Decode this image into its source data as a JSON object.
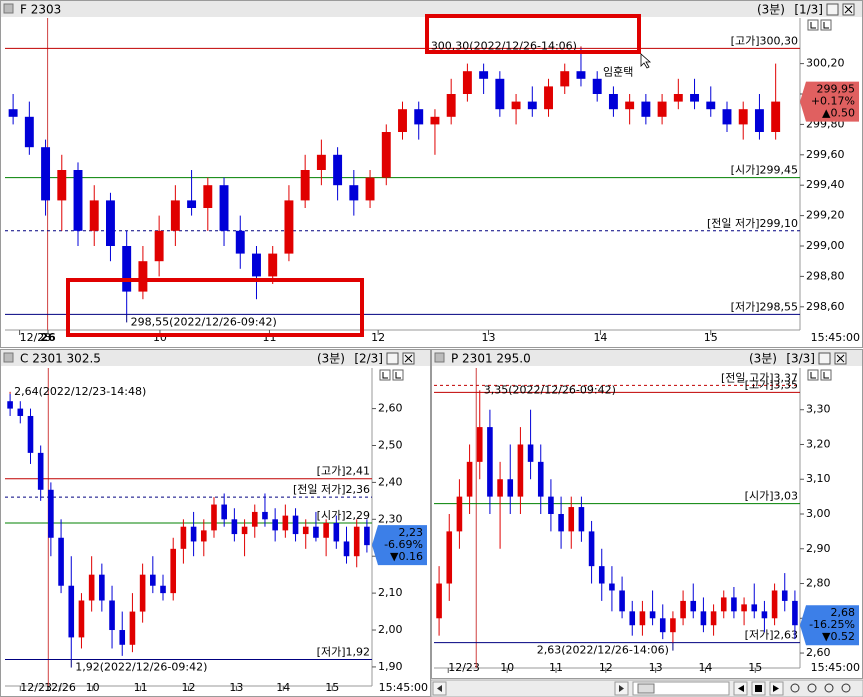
{
  "chart_data": [
    {
      "type": "candlestick",
      "title": "F 2303",
      "period": "(3분)",
      "page": "[1/3]",
      "user_label": "임훈택",
      "up_color": "#e00000",
      "down_color": "#0000d8",
      "badge_color": "#e06060",
      "badge": [
        "299,95",
        "+0.17%",
        "▲0.50"
      ],
      "xlim": [
        0,
        49
      ],
      "xticks": [
        {
          "value": 0.9,
          "label": "12/23"
        },
        {
          "value": 2.65,
          "label": "26"
        },
        {
          "value": 9.55,
          "label": "10"
        },
        {
          "value": 16.3,
          "label": "11"
        },
        {
          "value": 23.0,
          "label": "12"
        },
        {
          "value": 29.8,
          "label": "13"
        },
        {
          "value": 36.7,
          "label": "14"
        },
        {
          "value": 43.5,
          "label": "15"
        }
      ],
      "x_end_label": "15:45:00",
      "ylim": [
        298.5,
        300.5
      ],
      "yticks": [
        {
          "value": 300.2,
          "label": "300,20"
        },
        {
          "value": 300.0,
          "label": "300,00"
        },
        {
          "value": 299.8,
          "label": "299,80"
        },
        {
          "value": 299.6,
          "label": "299,60"
        },
        {
          "value": 299.4,
          "label": "299,40"
        },
        {
          "value": 299.2,
          "label": "299,20"
        },
        {
          "value": 299.0,
          "label": "299,00"
        },
        {
          "value": 298.8,
          "label": "298,80"
        },
        {
          "value": 298.6,
          "label": "298,60"
        }
      ],
      "reference_lines": [
        {
          "label": "[고가]",
          "value": 300.3,
          "value_label": "300,30",
          "color": "#c00000",
          "style": "solid"
        },
        {
          "label": "[시가]",
          "value": 299.45,
          "value_label": "299,45",
          "color": "#008000",
          "style": "solid"
        },
        {
          "label": "[전일 저가]",
          "value": 299.1,
          "value_label": "299,10",
          "color": "#000080",
          "style": "dashed"
        },
        {
          "label": "[저가]",
          "value": 298.55,
          "value_label": "298,55",
          "color": "#000080",
          "style": "solid"
        }
      ],
      "annotations": [
        {
          "text": "300,30(2022/12/26-14:06)",
          "value": 300.3
        },
        {
          "text": "298,55(2022/12/26-09:42)",
          "value": 298.55
        }
      ],
      "open": [
        299.9,
        299.85,
        299.65,
        299.3,
        299.5,
        299.1,
        299.3,
        299.0,
        298.7,
        298.9,
        299.1,
        299.3,
        299.25,
        299.4,
        299.1,
        298.95,
        298.8,
        298.95,
        299.3,
        299.5,
        299.6,
        299.4,
        299.3,
        299.45,
        299.75,
        299.9,
        299.8,
        299.85,
        300.0,
        300.15,
        300.1,
        299.9,
        299.95,
        299.9,
        300.05,
        300.15,
        300.1,
        300.0,
        299.9,
        299.95,
        299.85,
        299.95,
        300.0,
        299.95,
        299.9,
        299.8,
        299.9,
        299.75
      ],
      "high": [
        300.0,
        299.95,
        299.7,
        299.6,
        299.55,
        299.4,
        299.35,
        299.1,
        299.0,
        299.2,
        299.4,
        299.5,
        299.45,
        299.45,
        299.2,
        299.0,
        299.0,
        299.4,
        299.6,
        299.7,
        299.65,
        299.5,
        299.5,
        299.8,
        299.95,
        299.95,
        299.9,
        300.1,
        300.2,
        300.2,
        300.15,
        300.0,
        300.05,
        300.1,
        300.2,
        300.3,
        300.15,
        300.05,
        300.0,
        300.0,
        300.0,
        300.1,
        300.1,
        300.05,
        299.95,
        299.95,
        300.0,
        300.2
      ],
      "low": [
        299.8,
        299.6,
        299.2,
        299.1,
        299.0,
        299.0,
        298.9,
        298.55,
        298.65,
        298.8,
        299.0,
        299.2,
        299.1,
        299.0,
        298.85,
        298.65,
        298.75,
        298.9,
        299.25,
        299.4,
        299.3,
        299.2,
        299.25,
        299.4,
        299.7,
        299.7,
        299.6,
        299.8,
        299.95,
        300.0,
        299.85,
        299.8,
        299.85,
        299.85,
        300.0,
        300.05,
        299.95,
        299.85,
        299.8,
        299.8,
        299.8,
        299.9,
        299.9,
        299.85,
        299.75,
        299.7,
        299.7,
        299.7
      ],
      "close": [
        299.85,
        299.65,
        299.3,
        299.5,
        299.1,
        299.3,
        299.0,
        298.7,
        298.9,
        299.1,
        299.3,
        299.25,
        299.4,
        299.1,
        298.95,
        298.8,
        298.95,
        299.3,
        299.5,
        299.6,
        299.4,
        299.3,
        299.45,
        299.75,
        299.9,
        299.8,
        299.85,
        300.0,
        300.15,
        300.1,
        299.9,
        299.95,
        299.9,
        300.05,
        300.15,
        300.1,
        300.0,
        299.9,
        299.95,
        299.85,
        299.95,
        300.0,
        299.95,
        299.9,
        299.8,
        299.9,
        299.75,
        299.95
      ]
    },
    {
      "type": "candlestick",
      "title": "C 2301 302.5",
      "period": "(3분)",
      "page": "[2/3]",
      "up_color": "#e00000",
      "down_color": "#0000d8",
      "badge_color": "#3c7fe8",
      "badge": [
        "2,23",
        "-6.69%",
        "▼0.16"
      ],
      "xlim": [
        0,
        36
      ],
      "xticks": [
        {
          "value": 1.5,
          "label": "12/23"
        },
        {
          "value": 5.4,
          "label": "12/26"
        },
        {
          "value": 8.6,
          "label": "10"
        },
        {
          "value": 13.3,
          "label": "11"
        },
        {
          "value": 18.0,
          "label": "12"
        },
        {
          "value": 22.7,
          "label": "13"
        },
        {
          "value": 27.3,
          "label": "14"
        },
        {
          "value": 32.1,
          "label": "15"
        }
      ],
      "x_end_label": "15:45:00",
      "ylim": [
        1.87,
        2.71
      ],
      "yticks": [
        {
          "value": 2.6,
          "label": "2,60"
        },
        {
          "value": 2.5,
          "label": "2,50"
        },
        {
          "value": 2.4,
          "label": "2,40"
        },
        {
          "value": 2.3,
          "label": "2,30"
        },
        {
          "value": 2.2,
          "label": "2,20"
        },
        {
          "value": 2.1,
          "label": "2,10"
        },
        {
          "value": 2.0,
          "label": "2,00"
        },
        {
          "value": 1.9,
          "label": "1,90"
        }
      ],
      "reference_lines": [
        {
          "label": "[고가]",
          "value": 2.41,
          "value_label": "2,41",
          "color": "#c00000",
          "style": "solid"
        },
        {
          "label": "[전일 저가]",
          "value": 2.36,
          "value_label": "2,36",
          "color": "#000080",
          "style": "dashed"
        },
        {
          "label": "[시가]",
          "value": 2.29,
          "value_label": "2,29",
          "color": "#008000",
          "style": "solid"
        },
        {
          "label": "[저가]",
          "value": 1.92,
          "value_label": "1,92",
          "color": "#000080",
          "style": "solid"
        }
      ],
      "annotations": [
        {
          "text": "2,64(2022/12/23-14:48)",
          "value": 2.64
        },
        {
          "text": "1,92(2022/12/26-09:42)",
          "value": 1.92
        }
      ],
      "open": [
        2.62,
        2.6,
        2.58,
        2.48,
        2.38,
        2.25,
        2.12,
        1.98,
        2.08,
        2.15,
        2.08,
        2.0,
        1.96,
        2.05,
        2.15,
        2.12,
        2.1,
        2.22,
        2.28,
        2.24,
        2.27,
        2.34,
        2.3,
        2.26,
        2.28,
        2.32,
        2.3,
        2.27,
        2.31,
        2.26,
        2.28,
        2.25,
        2.29,
        2.24,
        2.2,
        2.28
      ],
      "high": [
        2.64,
        2.62,
        2.6,
        2.5,
        2.4,
        2.3,
        2.2,
        2.1,
        2.2,
        2.18,
        2.12,
        2.05,
        2.1,
        2.18,
        2.2,
        2.15,
        2.25,
        2.3,
        2.32,
        2.3,
        2.36,
        2.37,
        2.33,
        2.3,
        2.34,
        2.37,
        2.33,
        2.34,
        2.33,
        2.3,
        2.32,
        2.3,
        2.31,
        2.28,
        2.3,
        2.3
      ],
      "low": [
        2.58,
        2.56,
        2.45,
        2.35,
        2.2,
        2.1,
        1.92,
        1.95,
        2.05,
        2.05,
        1.95,
        1.93,
        1.94,
        2.02,
        2.1,
        2.08,
        2.08,
        2.18,
        2.2,
        2.2,
        2.25,
        2.28,
        2.24,
        2.2,
        2.25,
        2.28,
        2.24,
        2.25,
        2.24,
        2.22,
        2.24,
        2.2,
        2.22,
        2.18,
        2.17,
        2.21
      ],
      "close": [
        2.6,
        2.58,
        2.48,
        2.38,
        2.25,
        2.12,
        1.98,
        2.08,
        2.15,
        2.08,
        2.0,
        1.96,
        2.05,
        2.15,
        2.12,
        2.1,
        2.22,
        2.28,
        2.24,
        2.27,
        2.34,
        2.3,
        2.26,
        2.28,
        2.32,
        2.3,
        2.27,
        2.31,
        2.26,
        2.28,
        2.25,
        2.29,
        2.24,
        2.2,
        2.28,
        2.23
      ]
    },
    {
      "type": "candlestick",
      "title": "P 2301 295.0",
      "period": "(3분)",
      "page": "[3/3]",
      "up_color": "#e00000",
      "down_color": "#0000d8",
      "badge_color": "#3c7fe8",
      "badge": [
        "2,68",
        "-16.25%",
        "▼0.52"
      ],
      "xlim": [
        0,
        36
      ],
      "xticks": [
        {
          "value": 1.4,
          "label": "12/23"
        },
        {
          "value": 7.2,
          "label": "10"
        },
        {
          "value": 12.0,
          "label": "11"
        },
        {
          "value": 16.9,
          "label": "12"
        },
        {
          "value": 21.8,
          "label": "13"
        },
        {
          "value": 26.7,
          "label": "14"
        },
        {
          "value": 31.6,
          "label": "15"
        }
      ],
      "x_end_label": "15:45:00",
      "ylim": [
        2.58,
        3.42
      ],
      "yticks": [
        {
          "value": 3.3,
          "label": "3,30"
        },
        {
          "value": 3.2,
          "label": "3,20"
        },
        {
          "value": 3.1,
          "label": "3,10"
        },
        {
          "value": 3.0,
          "label": "3,00"
        },
        {
          "value": 2.9,
          "label": "2,90"
        },
        {
          "value": 2.8,
          "label": "2,80"
        },
        {
          "value": 2.7,
          "label": "2,70"
        },
        {
          "value": 2.6,
          "label": "2,60"
        }
      ],
      "reference_lines": [
        {
          "label": "[전일 고가]",
          "value": 3.37,
          "value_label": "3,37",
          "color": "#c00000",
          "style": "dashed"
        },
        {
          "label": "[고가]",
          "value": 3.35,
          "value_label": "3,35",
          "color": "#c00000",
          "style": "solid"
        },
        {
          "label": "[시가]",
          "value": 3.03,
          "value_label": "3,03",
          "color": "#008000",
          "style": "solid"
        },
        {
          "label": "[저가]",
          "value": 2.63,
          "value_label": "2,63",
          "color": "#000080",
          "style": "solid"
        }
      ],
      "annotations": [
        {
          "text": "3,35(2022/12/26-09:42)",
          "value": 3.35
        },
        {
          "text": "2,63(2022/12/26-14:06)",
          "value": 2.63
        }
      ],
      "open": [
        2.7,
        2.8,
        2.95,
        3.05,
        3.15,
        3.25,
        3.05,
        3.1,
        3.05,
        3.2,
        3.15,
        3.05,
        3.0,
        2.95,
        3.02,
        2.95,
        2.85,
        2.8,
        2.78,
        2.72,
        2.68,
        2.72,
        2.7,
        2.66,
        2.7,
        2.75,
        2.72,
        2.68,
        2.72,
        2.76,
        2.72,
        2.74,
        2.72,
        2.7,
        2.78,
        2.75
      ],
      "high": [
        2.85,
        3.0,
        3.1,
        3.2,
        3.35,
        3.3,
        3.15,
        3.2,
        3.25,
        3.3,
        3.2,
        3.1,
        3.05,
        3.05,
        3.05,
        2.98,
        2.9,
        2.85,
        2.82,
        2.75,
        2.75,
        2.78,
        2.74,
        2.72,
        2.78,
        2.8,
        2.76,
        2.74,
        2.78,
        2.79,
        2.76,
        2.8,
        2.75,
        2.8,
        2.83,
        2.78
      ],
      "low": [
        2.65,
        2.75,
        2.9,
        3.0,
        3.1,
        3.0,
        2.9,
        3.0,
        3.0,
        3.1,
        3.0,
        2.95,
        2.9,
        2.9,
        2.92,
        2.8,
        2.75,
        2.72,
        2.7,
        2.65,
        2.65,
        2.68,
        2.64,
        2.63,
        2.68,
        2.7,
        2.66,
        2.65,
        2.7,
        2.7,
        2.68,
        2.7,
        2.66,
        2.68,
        2.72,
        2.64
      ],
      "close": [
        2.8,
        2.95,
        3.05,
        3.15,
        3.25,
        3.05,
        3.1,
        3.05,
        3.2,
        3.15,
        3.05,
        3.0,
        2.95,
        3.02,
        2.95,
        2.85,
        2.8,
        2.78,
        2.72,
        2.68,
        2.72,
        2.7,
        2.66,
        2.7,
        2.75,
        2.72,
        2.68,
        2.72,
        2.76,
        2.72,
        2.74,
        2.72,
        2.7,
        2.78,
        2.75,
        2.68
      ]
    }
  ]
}
